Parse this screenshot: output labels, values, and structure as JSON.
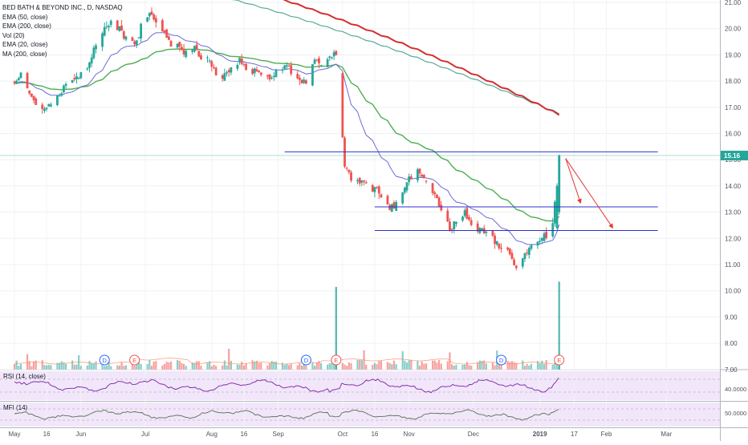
{
  "chart": {
    "title": "BED BATH & BEYOND INC., D, NASDAQ",
    "legend": [
      "EMA (50, close)",
      "EMA (200, close)",
      "Vol (20)",
      "EMA (20, close)",
      "MA (200, close)"
    ],
    "last_price_label": "15.16",
    "rsi_label": "RSI (14, close)",
    "rsi_value": "40.0000",
    "mfi_label": "MFI (14)",
    "mfi_value": "50.0000",
    "x_ticks": [
      "May",
      "16",
      "Jun",
      "Jul",
      "Aug",
      "16",
      "Sep",
      "Oct",
      "16",
      "Nov",
      "Dec",
      "2019",
      "17",
      "Feb",
      "Mar"
    ],
    "colors": {
      "up": "#26a69a",
      "down": "#ef5350",
      "ema20": "#6a6ad8",
      "ema50": "#4caf50",
      "ema200": "#d32f2f",
      "ma200": "#5aa89a",
      "levels": "#3030c8",
      "rsi": "#7b1fa2",
      "mfi": "#5a6e50",
      "panel": "#f1e6fa",
      "arrows": "#e53935"
    }
  },
  "chart_data": {
    "type": "candlestick",
    "y_ticks": [
      "21.00",
      "20.00",
      "19.00",
      "18.00",
      "17.00",
      "16.00",
      "15.00",
      "14.00",
      "13.00",
      "12.00",
      "11.00",
      "10.00",
      "9.00",
      "8.00",
      "7.00"
    ],
    "ylim": [
      6.9,
      21.1
    ],
    "xlim": [
      "2018-05-01",
      "2019-03-02"
    ],
    "close_series": [
      [
        "2018-05-01",
        17.9
      ],
      [
        "2018-05-04",
        18.2
      ],
      [
        "2018-05-08",
        17.6
      ],
      [
        "2018-05-11",
        17.1
      ],
      [
        "2018-05-15",
        16.9
      ],
      [
        "2018-05-18",
        17.2
      ],
      [
        "2018-05-22",
        17.5
      ],
      [
        "2018-05-25",
        17.9
      ],
      [
        "2018-05-29",
        18.0
      ],
      [
        "2018-06-01",
        18.3
      ],
      [
        "2018-06-05",
        18.6
      ],
      [
        "2018-06-08",
        19.4
      ],
      [
        "2018-06-12",
        20.0
      ],
      [
        "2018-06-15",
        20.3
      ],
      [
        "2018-06-19",
        20.0
      ],
      [
        "2018-06-22",
        19.6
      ],
      [
        "2018-06-26",
        19.3
      ],
      [
        "2018-06-29",
        20.1
      ],
      [
        "2018-07-03",
        20.6
      ],
      [
        "2018-07-06",
        20.3
      ],
      [
        "2018-07-10",
        19.8
      ],
      [
        "2018-07-13",
        19.4
      ],
      [
        "2018-07-17",
        19.2
      ],
      [
        "2018-07-20",
        19.0
      ],
      [
        "2018-07-24",
        19.3
      ],
      [
        "2018-07-27",
        18.9
      ],
      [
        "2018-07-31",
        18.8
      ],
      [
        "2018-08-03",
        18.3
      ],
      [
        "2018-08-07",
        18.1
      ],
      [
        "2018-08-10",
        18.6
      ],
      [
        "2018-08-14",
        18.7
      ],
      [
        "2018-08-17",
        18.4
      ],
      [
        "2018-08-21",
        18.5
      ],
      [
        "2018-08-24",
        18.2
      ],
      [
        "2018-08-28",
        18.1
      ],
      [
        "2018-08-31",
        18.3
      ],
      [
        "2018-09-04",
        18.6
      ],
      [
        "2018-09-07",
        18.4
      ],
      [
        "2018-09-11",
        18.1
      ],
      [
        "2018-09-14",
        18.0
      ],
      [
        "2018-09-18",
        18.8
      ],
      [
        "2018-09-21",
        18.7
      ],
      [
        "2018-09-25",
        19.0
      ],
      [
        "2018-09-28",
        19.0
      ],
      [
        "2018-10-02",
        14.8
      ],
      [
        "2018-10-05",
        14.3
      ],
      [
        "2018-10-09",
        14.1
      ],
      [
        "2018-10-12",
        14.1
      ],
      [
        "2018-10-16",
        13.9
      ],
      [
        "2018-10-19",
        13.6
      ],
      [
        "2018-10-23",
        13.2
      ],
      [
        "2018-10-26",
        13.4
      ],
      [
        "2018-10-30",
        13.9
      ],
      [
        "2018-11-02",
        14.4
      ],
      [
        "2018-11-06",
        14.6
      ],
      [
        "2018-11-09",
        14.2
      ],
      [
        "2018-11-13",
        13.6
      ],
      [
        "2018-11-16",
        13.1
      ],
      [
        "2018-11-20",
        12.4
      ],
      [
        "2018-11-23",
        12.7
      ],
      [
        "2018-11-27",
        12.9
      ],
      [
        "2018-11-30",
        12.6
      ],
      [
        "2018-12-04",
        12.2
      ],
      [
        "2018-12-07",
        12.3
      ],
      [
        "2018-12-11",
        11.9
      ],
      [
        "2018-12-14",
        11.6
      ],
      [
        "2018-12-18",
        11.4
      ],
      [
        "2018-12-21",
        11.0
      ],
      [
        "2018-12-26",
        11.4
      ],
      [
        "2018-12-28",
        11.8
      ],
      [
        "2019-01-03",
        12.0
      ],
      [
        "2019-01-07",
        12.6
      ],
      [
        "2019-01-09",
        14.2
      ],
      [
        "2019-01-10",
        15.16
      ]
    ],
    "volume_spikes": [
      {
        "date": "2018-09-28",
        "vol_axis_value": 10.15
      },
      {
        "date": "2019-01-10",
        "vol_axis_value": 10.35
      }
    ],
    "horizontal_levels": [
      {
        "value": 15.3,
        "from": "2018-09-04",
        "to": "2019-02-25"
      },
      {
        "value": 13.2,
        "from": "2018-10-16",
        "to": "2019-02-25"
      },
      {
        "value": 12.3,
        "from": "2018-10-16",
        "to": "2019-02-25"
      }
    ],
    "events": [
      {
        "label": "D",
        "date": "2018-06-12"
      },
      {
        "label": "E",
        "date": "2018-06-26"
      },
      {
        "label": "D",
        "date": "2018-09-14"
      },
      {
        "label": "E",
        "date": "2018-09-28"
      },
      {
        "label": "D",
        "date": "2018-12-14"
      },
      {
        "label": "E",
        "date": "2019-01-10"
      }
    ]
  }
}
